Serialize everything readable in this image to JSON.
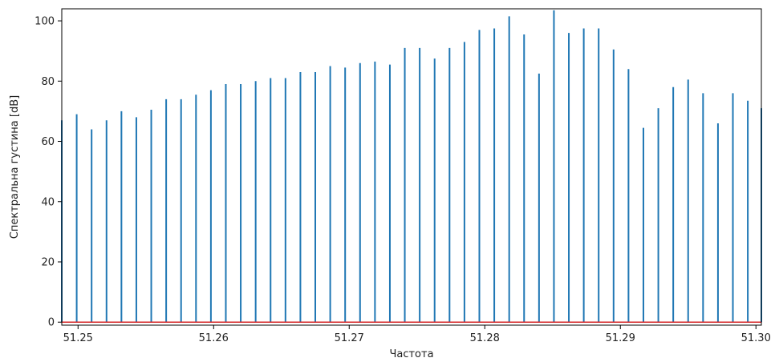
{
  "chart_data": {
    "type": "stem",
    "xlabel": "Частота",
    "ylabel": "Спектральна густина [dB]",
    "xlim": [
      51.2488,
      51.3004
    ],
    "ylim": [
      -1,
      104
    ],
    "x_ticks": [
      51.25,
      51.26,
      51.27,
      51.28,
      51.29,
      51.3
    ],
    "x_tick_labels": [
      "51.25",
      "51.26",
      "51.27",
      "51.28",
      "51.29",
      "51.30"
    ],
    "y_ticks": [
      0,
      20,
      40,
      60,
      80,
      100
    ],
    "y_tick_labels": [
      "0",
      "20",
      "40",
      "60",
      "80",
      "100"
    ],
    "stem_color": "#1f77b4",
    "baseline_color": "#d62728",
    "baseline_value": 0,
    "grid": false,
    "x": [
      51.2488,
      51.2499,
      51.251,
      51.2521,
      51.2532,
      51.2543,
      51.2554,
      51.2565,
      51.2576,
      51.2587,
      51.2598,
      51.2609,
      51.262,
      51.2631,
      51.2642,
      51.2653,
      51.2664,
      51.2675,
      51.2686,
      51.2697,
      51.2708,
      51.2719,
      51.273,
      51.2741,
      51.2752,
      51.2763,
      51.2774,
      51.2785,
      51.2796,
      51.2807,
      51.2818,
      51.2829,
      51.284,
      51.2851,
      51.2862,
      51.2873,
      51.2884,
      51.2895,
      51.2906,
      51.2917,
      51.2928,
      51.2939,
      51.295,
      51.2961,
      51.2972,
      51.2983,
      51.2994,
      51.3004
    ],
    "values": [
      67,
      69,
      64,
      67,
      70,
      68,
      70.5,
      74,
      74,
      75.5,
      77,
      79,
      79,
      80,
      81,
      81,
      83,
      83,
      85,
      84.5,
      86,
      86.5,
      85.5,
      91,
      91,
      87.5,
      91,
      93,
      97,
      97.5,
      101.5,
      95.5,
      82.5,
      103.5,
      96,
      97.5,
      97.5,
      90.5,
      84,
      64.5,
      71,
      78,
      80.5,
      76,
      66,
      76,
      73.5,
      71
    ]
  }
}
